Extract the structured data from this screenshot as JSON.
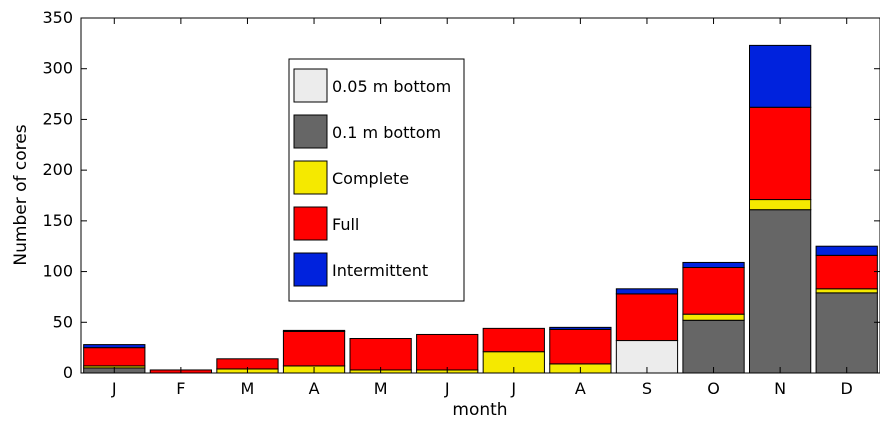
{
  "chart_data": {
    "type": "bar",
    "stacked": true,
    "title": "",
    "xlabel": "month",
    "ylabel": "Number of cores",
    "ylim": [
      0,
      350
    ],
    "yticks": [
      0,
      50,
      100,
      150,
      200,
      250,
      300,
      350
    ],
    "grid": false,
    "legend_position": "upper-left-center",
    "categories": [
      "J",
      "F",
      "M",
      "A",
      "M",
      "J",
      "J",
      "A",
      "S",
      "O",
      "N",
      "D"
    ],
    "series": [
      {
        "name": "0.05 m bottom",
        "color": "#ececec",
        "values": [
          0,
          0,
          0,
          0,
          0,
          0,
          0,
          0,
          32,
          0,
          0,
          0
        ]
      },
      {
        "name": "0.1 m bottom",
        "color": "#666666",
        "values": [
          5,
          0,
          0,
          0,
          0,
          0,
          0,
          0,
          0,
          52,
          161,
          79
        ]
      },
      {
        "name": "Complete",
        "color": "#f5e900",
        "values": [
          2,
          0,
          4,
          7,
          3,
          3,
          21,
          9,
          0,
          6,
          10,
          4
        ]
      },
      {
        "name": "Full",
        "color": "#ff0000",
        "values": [
          18,
          3,
          10,
          34,
          31,
          35,
          23,
          34,
          46,
          46,
          91,
          33
        ]
      },
      {
        "name": "Intermittent",
        "color": "#0022dd",
        "values": [
          3,
          0,
          0,
          1,
          0,
          0,
          0,
          2,
          5,
          5,
          61,
          9
        ]
      }
    ]
  }
}
